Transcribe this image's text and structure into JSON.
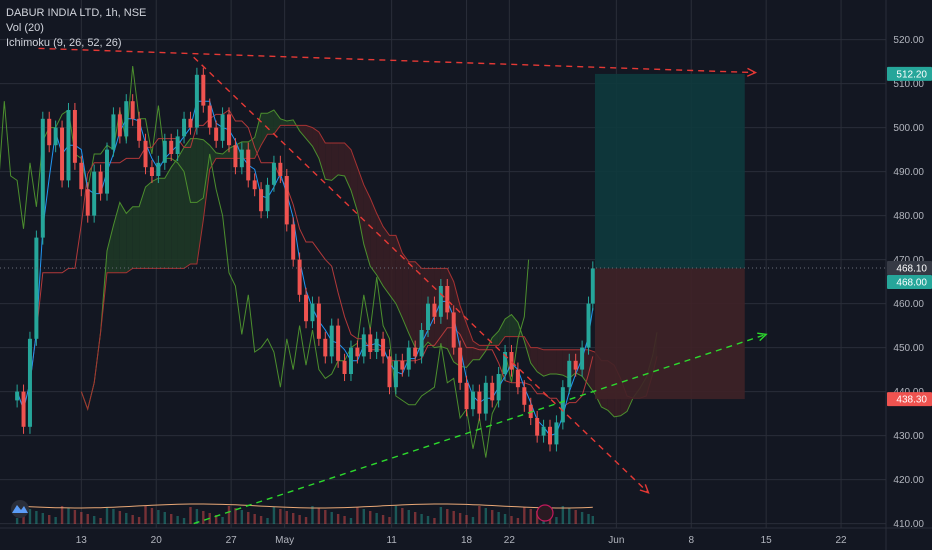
{
  "legend": {
    "symbol_line": "DABUR INDIA LTD, 1h, NSE",
    "volume_line": "Vol (20)",
    "ichimoku_line": "Ichimoku (9, 26, 52, 26)"
  },
  "colors": {
    "background": "#131722",
    "grid": "#2a2e39",
    "up": "#26a69a",
    "down": "#ef5350",
    "tenkan": "#2196f3",
    "kijun": "#b2393a",
    "chikou": "#4c8f2e",
    "span_a": "#4c8f2e",
    "span_b": "#a63232",
    "cloud_bull": "#1f3a26",
    "cloud_bear": "#3a1f24",
    "target_zone": "#0e3a3d",
    "stop_zone": "#3f2227",
    "trend_red": "#e53935",
    "trend_green": "#2dd92d",
    "volume_ma": "#e9a877"
  },
  "chart_data": {
    "type": "line",
    "chart_subtype": "candlestick with ichimoku and long-position tool",
    "symbol": "DABUR INDIA LTD",
    "interval": "1h",
    "exchange": "NSE",
    "yrange": [
      409,
      529
    ],
    "y_ticks": [
      410,
      420,
      430,
      440,
      450,
      460,
      470,
      480,
      490,
      500,
      510,
      520
    ],
    "y_tick_labels": [
      "410.00",
      "420.00",
      "430.00",
      "440.00",
      "450.00",
      "460.00",
      "470.00",
      "480.00",
      "490.00",
      "500.00",
      "510.00",
      "520.00"
    ],
    "x_ticks": [
      {
        "label": "13",
        "day": 13
      },
      {
        "label": "20",
        "day": 20
      },
      {
        "label": "27",
        "day": 27
      },
      {
        "label": "May",
        "day": 32
      },
      {
        "label": "11",
        "day": 42
      },
      {
        "label": "18",
        "day": 49
      },
      {
        "label": "22",
        "day": 53
      },
      {
        "label": "Jun",
        "day": 63
      },
      {
        "label": "8",
        "day": 70
      },
      {
        "label": "15",
        "day": 77
      },
      {
        "label": "22",
        "day": 84
      }
    ],
    "price_tags": [
      {
        "label": "512.20",
        "value": 512.2,
        "color": "#26a69a"
      },
      {
        "label": "468.10",
        "value": 468.1,
        "color": "#363a45"
      },
      {
        "label": "468.00",
        "value": 468.0,
        "color": "#26a69a"
      },
      {
        "label": "438.30",
        "value": 438.3,
        "color": "#ef5350"
      }
    ],
    "candles": [
      {
        "day": 7.0,
        "close": 440
      },
      {
        "day": 7.6,
        "close": 432
      },
      {
        "day": 8.2,
        "close": 452
      },
      {
        "day": 8.8,
        "close": 475
      },
      {
        "day": 9.4,
        "close": 502
      },
      {
        "day": 10.0,
        "close": 496
      },
      {
        "day": 10.6,
        "close": 500
      },
      {
        "day": 11.2,
        "close": 488
      },
      {
        "day": 11.8,
        "close": 504
      },
      {
        "day": 12.4,
        "close": 492
      },
      {
        "day": 13.0,
        "close": 486
      },
      {
        "day": 13.6,
        "close": 480
      },
      {
        "day": 14.2,
        "close": 490
      },
      {
        "day": 14.8,
        "close": 485
      },
      {
        "day": 15.4,
        "close": 495
      },
      {
        "day": 16.0,
        "close": 503
      },
      {
        "day": 16.6,
        "close": 498
      },
      {
        "day": 17.2,
        "close": 506
      },
      {
        "day": 17.8,
        "close": 502
      },
      {
        "day": 18.4,
        "close": 497
      },
      {
        "day": 19.0,
        "close": 491
      },
      {
        "day": 19.6,
        "close": 489
      },
      {
        "day": 20.2,
        "close": 492
      },
      {
        "day": 20.8,
        "close": 497
      },
      {
        "day": 21.4,
        "close": 494
      },
      {
        "day": 22.0,
        "close": 498
      },
      {
        "day": 22.6,
        "close": 502
      },
      {
        "day": 23.2,
        "close": 500
      },
      {
        "day": 23.8,
        "close": 512
      },
      {
        "day": 24.4,
        "close": 505
      },
      {
        "day": 25.0,
        "close": 500
      },
      {
        "day": 25.6,
        "close": 497
      },
      {
        "day": 26.2,
        "close": 503
      },
      {
        "day": 26.8,
        "close": 496
      },
      {
        "day": 27.4,
        "close": 491
      },
      {
        "day": 28.0,
        "close": 495
      },
      {
        "day": 28.6,
        "close": 488
      },
      {
        "day": 29.2,
        "close": 486
      },
      {
        "day": 29.8,
        "close": 481
      },
      {
        "day": 30.4,
        "close": 487
      },
      {
        "day": 31.0,
        "close": 492
      },
      {
        "day": 31.6,
        "close": 489
      },
      {
        "day": 32.2,
        "close": 478
      },
      {
        "day": 32.8,
        "close": 470
      },
      {
        "day": 33.4,
        "close": 462
      },
      {
        "day": 34.0,
        "close": 456
      },
      {
        "day": 34.6,
        "close": 460
      },
      {
        "day": 35.2,
        "close": 452
      },
      {
        "day": 35.8,
        "close": 448
      },
      {
        "day": 36.4,
        "close": 455
      },
      {
        "day": 37.0,
        "close": 447
      },
      {
        "day": 37.6,
        "close": 444
      },
      {
        "day": 38.2,
        "close": 450
      },
      {
        "day": 38.8,
        "close": 448
      },
      {
        "day": 39.4,
        "close": 453
      },
      {
        "day": 40.0,
        "close": 449
      },
      {
        "day": 40.6,
        "close": 452
      },
      {
        "day": 41.2,
        "close": 448
      },
      {
        "day": 41.8,
        "close": 441
      },
      {
        "day": 42.4,
        "close": 447
      },
      {
        "day": 43.0,
        "close": 445
      },
      {
        "day": 43.6,
        "close": 450
      },
      {
        "day": 44.2,
        "close": 448
      },
      {
        "day": 44.8,
        "close": 454
      },
      {
        "day": 45.4,
        "close": 460
      },
      {
        "day": 46.0,
        "close": 457
      },
      {
        "day": 46.6,
        "close": 464
      },
      {
        "day": 47.2,
        "close": 458
      },
      {
        "day": 47.8,
        "close": 450
      },
      {
        "day": 48.4,
        "close": 442
      },
      {
        "day": 49.0,
        "close": 436
      },
      {
        "day": 49.6,
        "close": 440
      },
      {
        "day": 50.2,
        "close": 435
      },
      {
        "day": 50.8,
        "close": 442
      },
      {
        "day": 51.4,
        "close": 438
      },
      {
        "day": 52.0,
        "close": 444
      },
      {
        "day": 52.6,
        "close": 449
      },
      {
        "day": 53.2,
        "close": 445
      },
      {
        "day": 53.8,
        "close": 441
      },
      {
        "day": 54.4,
        "close": 437
      },
      {
        "day": 55.0,
        "close": 434
      },
      {
        "day": 55.6,
        "close": 430
      },
      {
        "day": 56.2,
        "close": 432
      },
      {
        "day": 56.8,
        "close": 428
      },
      {
        "day": 57.4,
        "close": 433
      },
      {
        "day": 58.0,
        "close": 441
      },
      {
        "day": 58.6,
        "close": 447
      },
      {
        "day": 59.2,
        "close": 445
      },
      {
        "day": 59.8,
        "close": 450
      },
      {
        "day": 60.4,
        "close": 460
      },
      {
        "day": 60.8,
        "close": 468
      }
    ],
    "position_tool": {
      "start_day": 61.0,
      "end_day": 75.0,
      "entry": 468.0,
      "target": 512.2,
      "stop": 438.3
    },
    "trend_lines": [
      {
        "color": "red",
        "from": {
          "day": 9.0,
          "value": 518
        },
        "to": {
          "day": 76.0,
          "value": 512.5
        }
      },
      {
        "color": "red",
        "from": {
          "day": 23.5,
          "value": 516
        },
        "to": {
          "day": 66.0,
          "value": 417
        }
      },
      {
        "color": "green",
        "from": {
          "day": 23.5,
          "value": 410
        },
        "to": {
          "day": 77.0,
          "value": 453
        }
      }
    ]
  }
}
